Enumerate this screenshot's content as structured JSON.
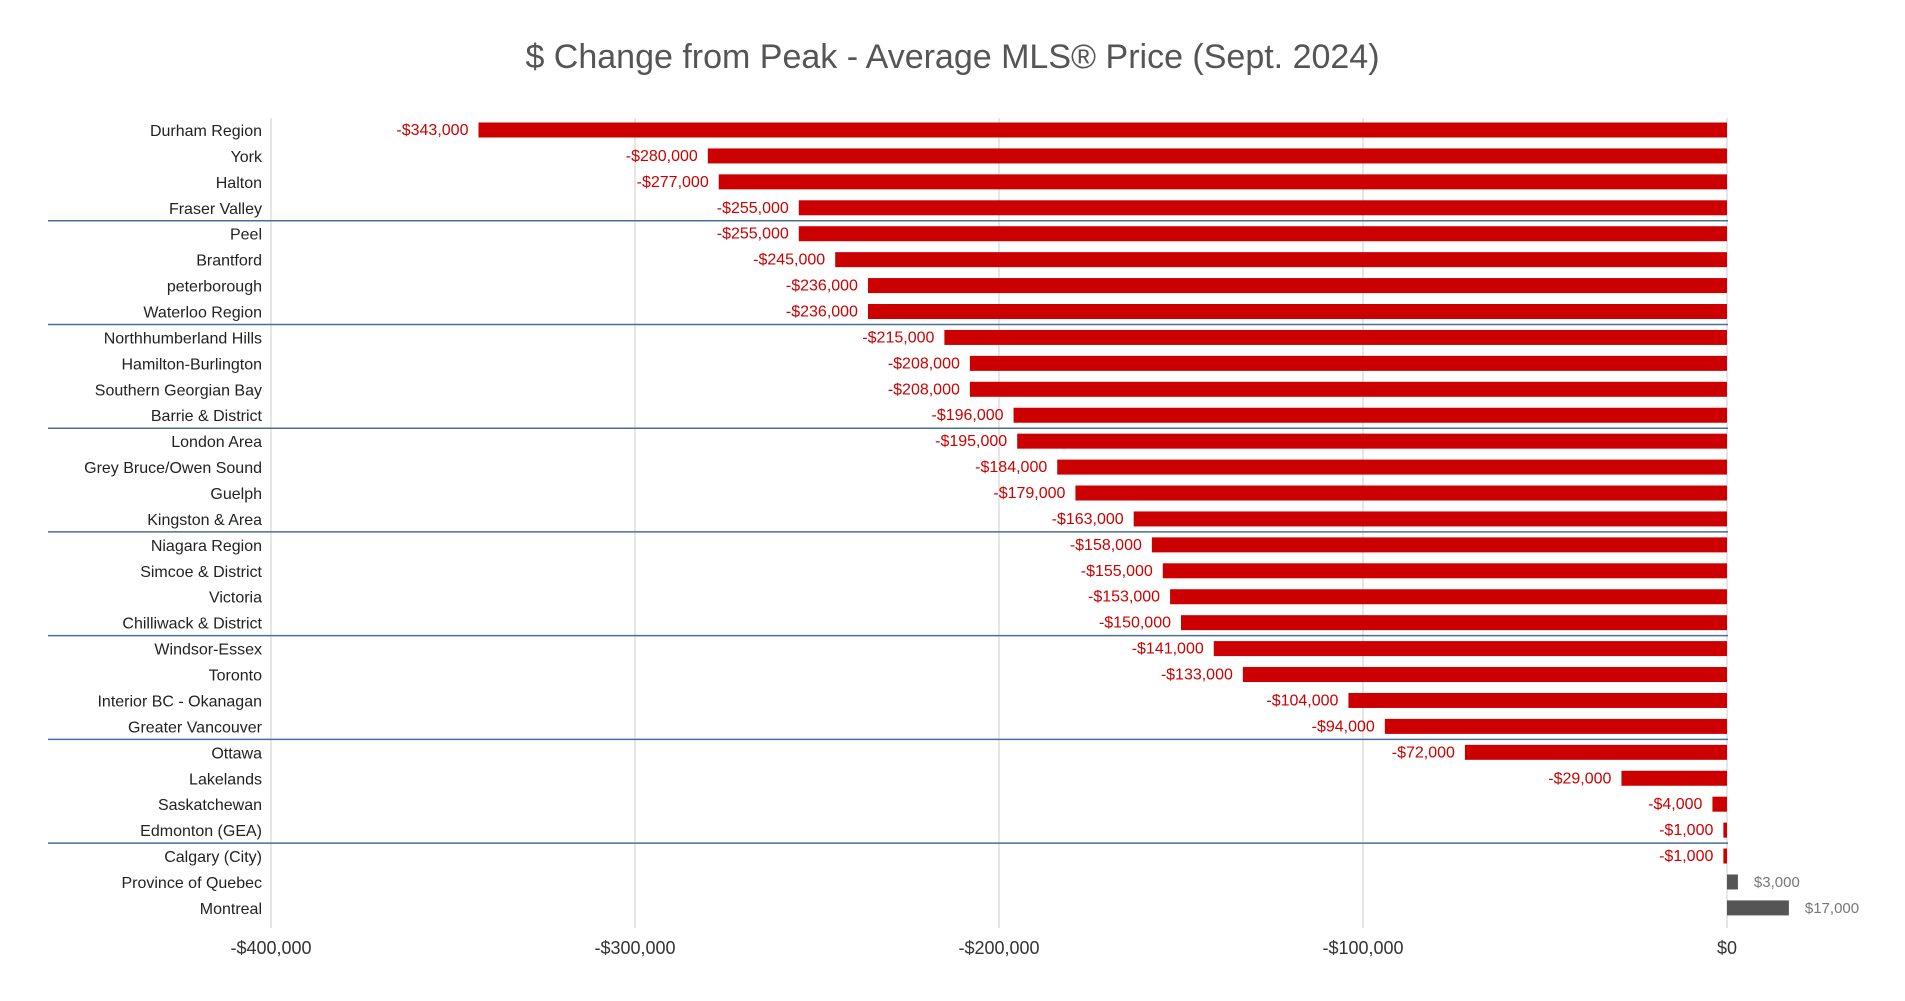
{
  "chart_data": {
    "type": "bar",
    "orientation": "horizontal",
    "title": "$ Change from Peak - Average MLS® Price (Sept. 2024)",
    "xlabel": "",
    "ylabel": "",
    "xlim": [
      -400000,
      40000
    ],
    "x_ticks": [
      -400000,
      -300000,
      -200000,
      -100000,
      0
    ],
    "x_tick_labels": [
      "-$400,000",
      "-$300,000",
      "-$200,000",
      "-$100,000",
      "$0"
    ],
    "grid": "vertical",
    "legend": "none",
    "group_separators_after_index": [
      3,
      7,
      11,
      15,
      19,
      23,
      27
    ],
    "colors": {
      "negative": "#cc0000",
      "positive": "#555555",
      "negative_label": "#cc0000",
      "positive_label": "#777777",
      "separator": "#4a6f96",
      "grid": "#cccccc"
    },
    "categories": [
      "Durham Region",
      "York",
      "Halton",
      "Fraser Valley",
      "Peel",
      "Brantford",
      "peterborough",
      "Waterloo Region",
      "Northhumberland Hills",
      "Hamilton-Burlington",
      "Southern Georgian Bay",
      "Barrie & District",
      "London Area",
      "Grey Bruce/Owen Sound",
      "Guelph",
      "Kingston & Area",
      "Niagara Region",
      "Simcoe & District",
      "Victoria",
      "Chilliwack & District",
      "Windsor-Essex",
      "Toronto",
      "Interior BC - Okanagan",
      "Greater Vancouver",
      "Ottawa",
      "Lakelands",
      "Saskatchewan",
      "Edmonton (GEA)",
      "Calgary (City)",
      "Province of Quebec",
      "Montreal"
    ],
    "values": [
      -343000,
      -280000,
      -277000,
      -255000,
      -255000,
      -245000,
      -236000,
      -236000,
      -215000,
      -208000,
      -208000,
      -196000,
      -195000,
      -184000,
      -179000,
      -163000,
      -158000,
      -155000,
      -153000,
      -150000,
      -141000,
      -133000,
      -104000,
      -94000,
      -72000,
      -29000,
      -4000,
      -1000,
      -1000,
      3000,
      17000
    ],
    "data_labels": [
      "-$343,000",
      "-$280,000",
      "-$277,000",
      "-$255,000",
      "-$255,000",
      "-$245,000",
      "-$236,000",
      "-$236,000",
      "-$215,000",
      "-$208,000",
      "-$208,000",
      "-$196,000",
      "-$195,000",
      "-$184,000",
      "-$179,000",
      "-$163,000",
      "-$158,000",
      "-$155,000",
      "-$153,000",
      "-$150,000",
      "-$141,000",
      "-$133,000",
      "-$104,000",
      "-$94,000",
      "-$72,000",
      "-$29,000",
      "-$4,000",
      "-$1,000",
      "-$1,000",
      "$3,000",
      "$17,000"
    ]
  }
}
